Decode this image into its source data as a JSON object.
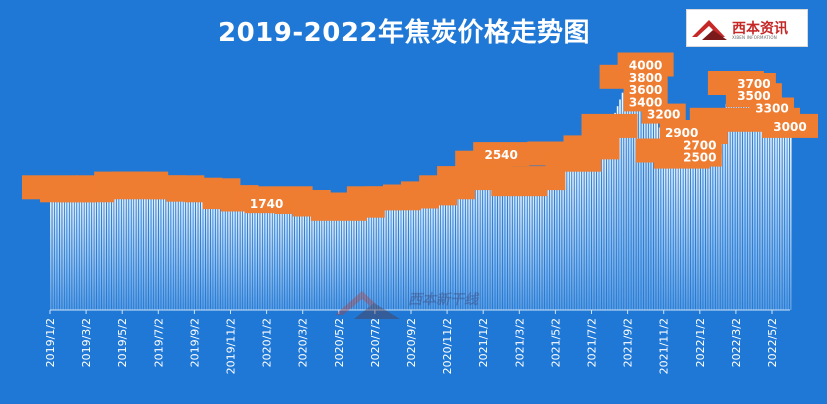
{
  "chart_data": {
    "type": "area",
    "title": "2019-2022年焦炭价格走势图",
    "xlabel": "",
    "ylabel": "",
    "ylim": [
      0,
      4400
    ],
    "x_tick_labels": [
      "2019/1/2",
      "2019/3/2",
      "2019/5/2",
      "2019/7/2",
      "2019/9/2",
      "2019/11/2",
      "2020/1/2",
      "2020/3/2",
      "2020/5/2",
      "2020/7/2",
      "2020/9/2",
      "2020/11/2",
      "2021/1/2",
      "2021/3/2",
      "2021/5/2",
      "2021/7/2",
      "2021/9/2",
      "2021/11/2",
      "2022/1/2",
      "2022/3/2",
      "2022/5/2"
    ],
    "x": [
      "2019/1",
      "2019/2",
      "2019/3",
      "2019/4",
      "2019/5",
      "2019/6",
      "2019/7",
      "2019/8",
      "2019/9",
      "2019/10",
      "2019/11",
      "2019/12",
      "2020/1",
      "2020/2",
      "2020/3",
      "2020/4",
      "2020/5",
      "2020/6",
      "2020/7",
      "2020/8",
      "2020/9",
      "2020/10",
      "2020/11",
      "2020/12",
      "2021/1",
      "2021/2",
      "2021/3",
      "2021/4",
      "2021/5",
      "2021/6",
      "2021/7",
      "2021/8",
      "2021/9",
      "2021/10",
      "2021/11",
      "2021/12",
      "2022/1",
      "2022/2",
      "2022/3",
      "2022/4",
      "2022/5",
      "2022/6"
    ],
    "series": [
      {
        "values": [
          2000,
          1950,
          1950,
          2000,
          2060,
          2060,
          2000,
          2000,
          1960,
          1950,
          1840,
          1800,
          1800,
          1820,
          1760,
          1720,
          1650,
          1700,
          1820,
          1820,
          1850,
          1900,
          2000,
          2150,
          2400,
          2540,
          2050,
          2150,
          2550,
          2450,
          2650,
          3000,
          3800,
          4000,
          2600,
          2500,
          2900,
          3100,
          3700,
          3500,
          3100,
          3000
        ]
      }
    ],
    "data_labels": [
      {
        "x": "2020/1",
        "text": "1740"
      },
      {
        "x": "2021/2",
        "text": "2540"
      },
      {
        "x": "2021/10",
        "text": "4000"
      },
      {
        "x": "2021/10",
        "text": "3800"
      },
      {
        "x": "2021/10",
        "text": "3600"
      },
      {
        "x": "2021/10",
        "text": "3400"
      },
      {
        "x": "2021/11",
        "text": "3200"
      },
      {
        "x": "2021/12",
        "text": "2900"
      },
      {
        "x": "2022/1",
        "text": "2700"
      },
      {
        "x": "2022/1",
        "text": "2500"
      },
      {
        "x": "2022/4",
        "text": "3700"
      },
      {
        "x": "2022/4",
        "text": "3500"
      },
      {
        "x": "2022/5",
        "text": "3300"
      },
      {
        "x": "2022/6",
        "text": "3000"
      }
    ],
    "grid": false,
    "legend": "none",
    "colors": {
      "background": "#1f78d6",
      "label_box": "#ef7d31",
      "bars": "#ffffff",
      "text": "#ffffff"
    }
  },
  "logo": {
    "text": "西本资讯",
    "subtext": "XIBEN INFORMATION"
  },
  "watermark": {
    "text": "西本新干线"
  }
}
